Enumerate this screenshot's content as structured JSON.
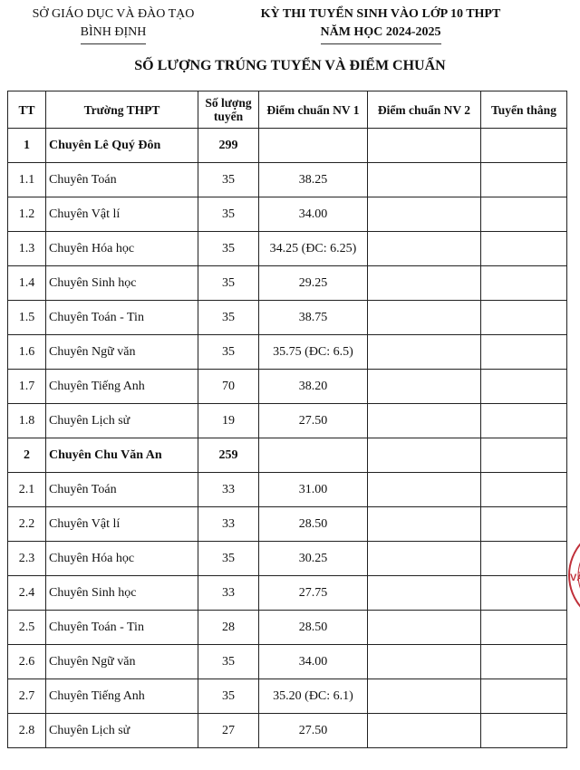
{
  "header": {
    "left_line1": "SỞ GIÁO DỤC VÀ ĐÀO TẠO",
    "left_line2": "BÌNH ĐỊNH",
    "right_line1": "KỲ THI TUYỂN SINH VÀO LỚP 10 THPT",
    "right_line2": "NĂM HỌC 2024-2025"
  },
  "title": "SỐ LƯỢNG TRÚNG TUYỂN VÀ ĐIỂM CHUẨN",
  "table": {
    "columns": [
      "TT",
      "Trường THPT",
      "Số lượng tuyển",
      "Điểm chuẩn NV 1",
      "Điểm chuẩn NV 2",
      "Tuyển thẳng"
    ],
    "rows": [
      {
        "tt": "1",
        "name": "Chuyên Lê Quý Đôn",
        "count": "299",
        "nv1": "",
        "nv2": "",
        "tt2": "",
        "bold": true
      },
      {
        "tt": "1.1",
        "name": "Chuyên Toán",
        "count": "35",
        "nv1": "38.25",
        "nv2": "",
        "tt2": ""
      },
      {
        "tt": "1.2",
        "name": "Chuyên Vật lí",
        "count": "35",
        "nv1": "34.00",
        "nv2": "",
        "tt2": ""
      },
      {
        "tt": "1.3",
        "name": "Chuyên Hóa học",
        "count": "35",
        "nv1": "34.25 (ĐC: 6.25)",
        "nv2": "",
        "tt2": ""
      },
      {
        "tt": "1.4",
        "name": "Chuyên Sinh học",
        "count": "35",
        "nv1": "29.25",
        "nv2": "",
        "tt2": ""
      },
      {
        "tt": "1.5",
        "name": "Chuyên Toán - Tin",
        "count": "35",
        "nv1": "38.75",
        "nv2": "",
        "tt2": ""
      },
      {
        "tt": "1.6",
        "name": "Chuyên Ngữ văn",
        "count": "35",
        "nv1": "35.75 (ĐC: 6.5)",
        "nv2": "",
        "tt2": ""
      },
      {
        "tt": "1.7",
        "name": "Chuyên Tiếng Anh",
        "count": "70",
        "nv1": "38.20",
        "nv2": "",
        "tt2": ""
      },
      {
        "tt": "1.8",
        "name": "Chuyên Lịch sử",
        "count": "19",
        "nv1": "27.50",
        "nv2": "",
        "tt2": ""
      },
      {
        "tt": "2",
        "name": "Chuyên Chu Văn An",
        "count": "259",
        "nv1": "",
        "nv2": "",
        "tt2": "",
        "bold": true
      },
      {
        "tt": "2.1",
        "name": "Chuyên Toán",
        "count": "33",
        "nv1": "31.00",
        "nv2": "",
        "tt2": ""
      },
      {
        "tt": "2.2",
        "name": "Chuyên Vật lí",
        "count": "33",
        "nv1": "28.50",
        "nv2": "",
        "tt2": ""
      },
      {
        "tt": "2.3",
        "name": "Chuyên Hóa học",
        "count": "35",
        "nv1": "30.25",
        "nv2": "",
        "tt2": ""
      },
      {
        "tt": "2.4",
        "name": "Chuyên Sinh học",
        "count": "33",
        "nv1": "27.75",
        "nv2": "",
        "tt2": ""
      },
      {
        "tt": "2.5",
        "name": "Chuyên Toán - Tin",
        "count": "28",
        "nv1": "28.50",
        "nv2": "",
        "tt2": ""
      },
      {
        "tt": "2.6",
        "name": "Chuyên Ngữ văn",
        "count": "35",
        "nv1": "34.00",
        "nv2": "",
        "tt2": ""
      },
      {
        "tt": "2.7",
        "name": "Chuyên Tiếng Anh",
        "count": "35",
        "nv1": "35.20 (ĐC: 6.1)",
        "nv2": "",
        "tt2": ""
      },
      {
        "tt": "2.8",
        "name": "Chuyên Lịch sử",
        "count": "27",
        "nv1": "27.50",
        "nv2": "",
        "tt2": ""
      }
    ]
  },
  "stamp": {
    "text": "VĂ",
    "color": "#c0303a"
  }
}
